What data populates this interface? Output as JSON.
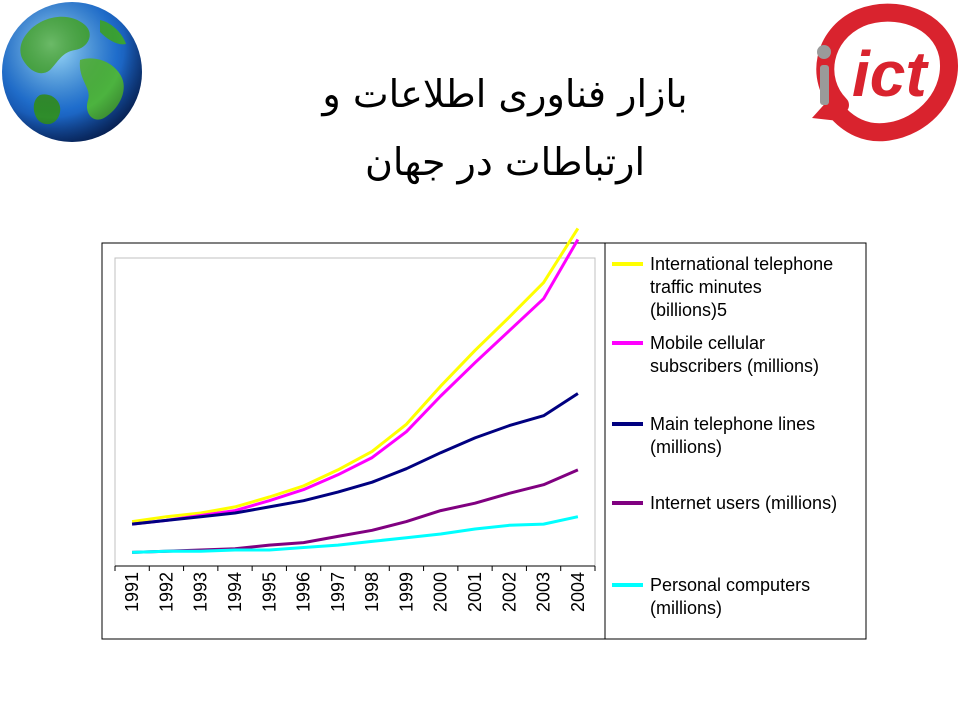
{
  "slide": {
    "title_line1": "بازار فناوری اطلاعات و",
    "title_line2": "ارتباطات در جهان",
    "globe_icon": "globe-icon",
    "logo_icon": "ict-logo-icon",
    "logo_text": "ict"
  },
  "chart_data": {
    "type": "line",
    "title": "",
    "xlabel": "",
    "ylabel": "",
    "categories": [
      "1991",
      "1992",
      "1993",
      "1994",
      "1995",
      "1996",
      "1997",
      "1998",
      "1999",
      "2000",
      "2001",
      "2002",
      "2003",
      "2004"
    ],
    "y_tick_labels_shown": false,
    "grid": false,
    "legend_position": "right",
    "series": [
      {
        "name_lines": [
          "International telephone",
          "traffic minutes",
          "(billions)5"
        ],
        "color": "#ffff00",
        "values": [
          26,
          30,
          33,
          38,
          46,
          55,
          68,
          83,
          105,
          136,
          165,
          192,
          220,
          264
        ]
      },
      {
        "name_lines": [
          "Mobile cellular",
          "subscribers (millions)"
        ],
        "color": "#ff00ff",
        "values": [
          24,
          27,
          31,
          35,
          43,
          52,
          64,
          78,
          99,
          128,
          155,
          181,
          207,
          255
        ]
      },
      {
        "name_lines": [
          "Main telephone lines",
          "(millions)"
        ],
        "color": "#000080",
        "values": [
          24,
          27,
          30,
          33,
          38,
          43,
          50,
          58,
          69,
          82,
          94,
          104,
          112,
          130
        ]
      },
      {
        "name_lines": [
          "Internet users (millions)"
        ],
        "color": "#800080",
        "values": [
          1,
          2,
          3,
          4,
          7,
          9,
          14,
          19,
          26,
          35,
          41,
          49,
          56,
          68
        ]
      },
      {
        "name_lines": [
          "Personal computers",
          "(millions)"
        ],
        "color": "#00ffff",
        "values": [
          1,
          2,
          2,
          3,
          3,
          5,
          7,
          10,
          13,
          16,
          20,
          23,
          24,
          30
        ]
      }
    ],
    "ylim": [
      -10,
      240
    ]
  }
}
